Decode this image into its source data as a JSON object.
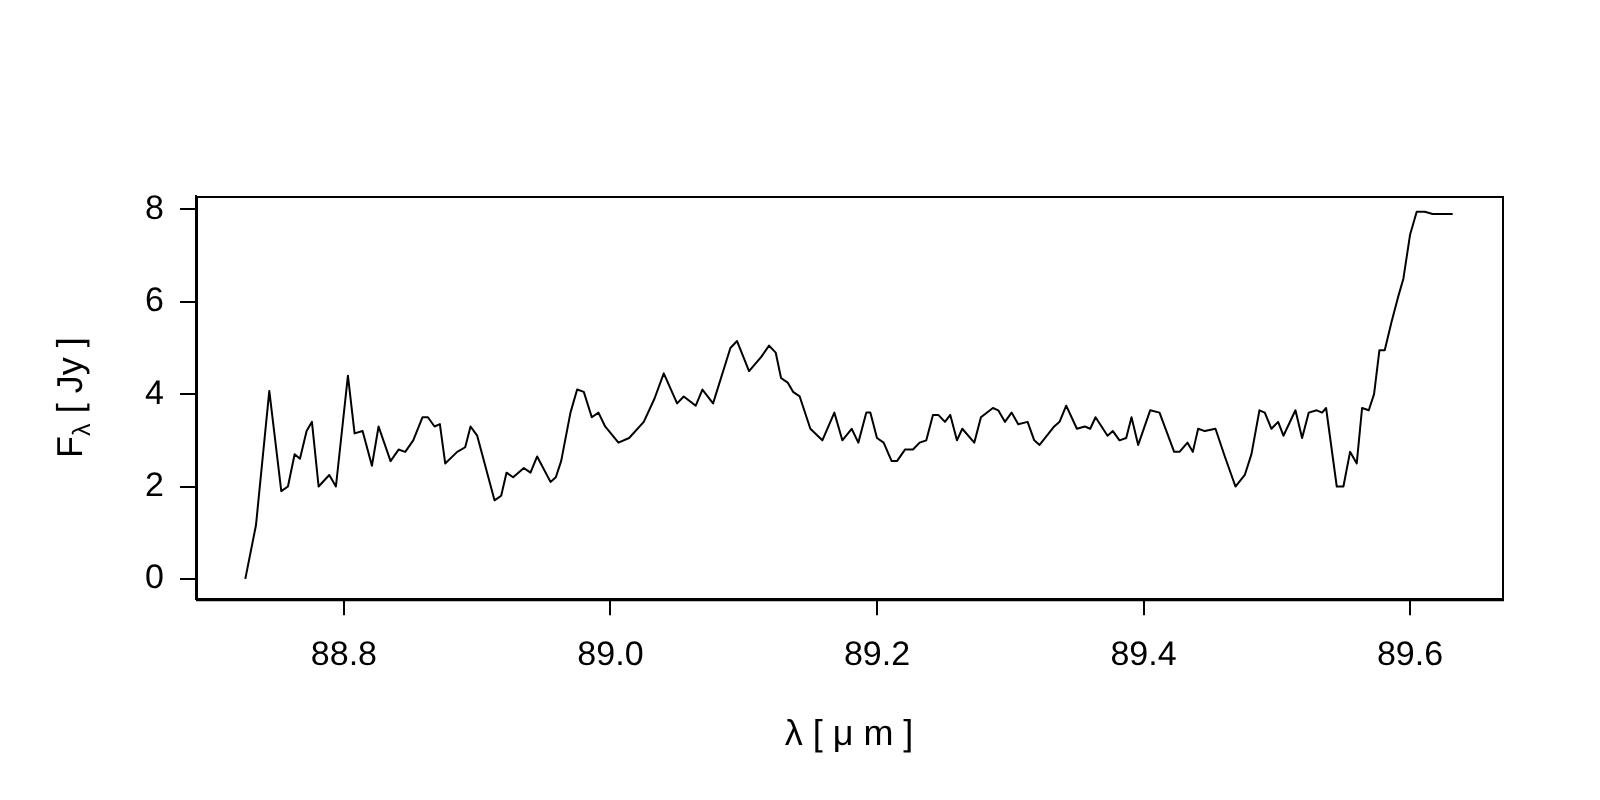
{
  "chart_data": {
    "type": "line",
    "xlabel": "λ [ μ m ]",
    "ylabel": "F$_{λ}$ [ Jy ]",
    "xlim": [
      88.689,
      89.669
    ],
    "ylim": [
      -0.44,
      8.29
    ],
    "xticks": [
      {
        "value": 88.8,
        "label": "88.8"
      },
      {
        "value": 89.0,
        "label": "89.0"
      },
      {
        "value": 89.2,
        "label": "89.2"
      },
      {
        "value": 89.4,
        "label": "89.4"
      },
      {
        "value": 89.6,
        "label": "89.6"
      }
    ],
    "yticks": [
      0,
      2,
      4,
      6,
      8
    ],
    "marker": "none",
    "line_style": "solid",
    "series": [
      {
        "color": "#000000",
        "x": [
          88.726,
          88.734,
          88.744,
          88.753,
          88.758,
          88.763,
          88.767,
          88.772,
          88.776,
          88.781,
          88.789,
          88.794,
          88.803,
          88.808,
          88.814,
          88.821,
          88.826,
          88.835,
          88.841,
          88.846,
          88.852,
          88.859,
          88.863,
          88.868,
          88.872,
          88.876,
          88.885,
          88.891,
          88.895,
          88.9,
          88.913,
          88.918,
          88.922,
          88.927,
          88.935,
          88.94,
          88.945,
          88.955,
          88.959,
          88.963,
          88.97,
          88.975,
          88.98,
          88.986,
          88.991,
          88.996,
          89.006,
          89.014,
          89.025,
          89.033,
          89.04,
          89.05,
          89.055,
          89.064,
          89.069,
          89.077,
          89.09,
          89.095,
          89.104,
          89.113,
          89.119,
          89.124,
          89.128,
          89.133,
          89.137,
          89.142,
          89.15,
          89.159,
          89.168,
          89.174,
          89.181,
          89.186,
          89.192,
          89.195,
          89.2,
          89.205,
          89.211,
          89.215,
          89.221,
          89.227,
          89.232,
          89.237,
          89.242,
          89.246,
          89.251,
          89.255,
          89.26,
          89.264,
          89.273,
          89.278,
          89.287,
          89.291,
          89.296,
          89.301,
          89.306,
          89.313,
          89.318,
          89.322,
          89.333,
          89.337,
          89.342,
          89.35,
          89.356,
          89.36,
          89.364,
          89.373,
          89.377,
          89.382,
          89.387,
          89.391,
          89.396,
          89.405,
          89.412,
          89.423,
          89.427,
          89.433,
          89.437,
          89.441,
          89.446,
          89.454,
          89.461,
          89.469,
          89.476,
          89.481,
          89.487,
          89.491,
          89.496,
          89.501,
          89.505,
          89.514,
          89.519,
          89.524,
          89.53,
          89.534,
          89.537,
          89.545,
          89.55,
          89.555,
          89.56,
          89.564,
          89.569,
          89.573,
          89.577,
          89.581,
          89.586,
          89.591,
          89.595,
          89.6,
          89.605,
          89.611,
          89.617,
          89.632
        ],
        "values": [
          0,
          1.16,
          4.07,
          1.9,
          2.0,
          2.7,
          2.6,
          3.2,
          3.4,
          2.0,
          2.25,
          2.0,
          4.4,
          3.15,
          3.2,
          2.45,
          3.3,
          2.55,
          2.8,
          2.75,
          3.0,
          3.5,
          3.5,
          3.3,
          3.35,
          2.5,
          2.75,
          2.85,
          3.3,
          3.1,
          1.7,
          1.8,
          2.3,
          2.2,
          2.4,
          2.3,
          2.65,
          2.1,
          2.2,
          2.55,
          3.6,
          4.1,
          4.05,
          3.5,
          3.6,
          3.3,
          2.95,
          3.05,
          3.4,
          3.9,
          4.45,
          3.8,
          3.95,
          3.75,
          4.1,
          3.8,
          5.0,
          5.15,
          4.5,
          4.8,
          5.05,
          4.9,
          4.35,
          4.25,
          4.05,
          3.95,
          3.25,
          3.0,
          3.6,
          3.0,
          3.25,
          2.95,
          3.6,
          3.6,
          3.05,
          2.95,
          2.55,
          2.55,
          2.8,
          2.8,
          2.95,
          3.0,
          3.55,
          3.55,
          3.4,
          3.55,
          3.0,
          3.25,
          2.95,
          3.5,
          3.7,
          3.65,
          3.4,
          3.6,
          3.35,
          3.4,
          3.0,
          2.9,
          3.3,
          3.4,
          3.75,
          3.25,
          3.3,
          3.25,
          3.5,
          3.1,
          3.2,
          3.0,
          3.05,
          3.5,
          2.9,
          3.65,
          3.6,
          2.75,
          2.75,
          2.95,
          2.75,
          3.25,
          3.2,
          3.25,
          2.65,
          2.0,
          2.25,
          2.7,
          3.65,
          3.6,
          3.25,
          3.4,
          3.1,
          3.65,
          3.05,
          3.6,
          3.65,
          3.6,
          3.7,
          2.0,
          2.0,
          2.75,
          2.5,
          3.7,
          3.65,
          4.0,
          4.95,
          4.95,
          5.55,
          6.1,
          6.5,
          7.45,
          7.95,
          7.95,
          7.9,
          7.9
        ]
      }
    ]
  }
}
